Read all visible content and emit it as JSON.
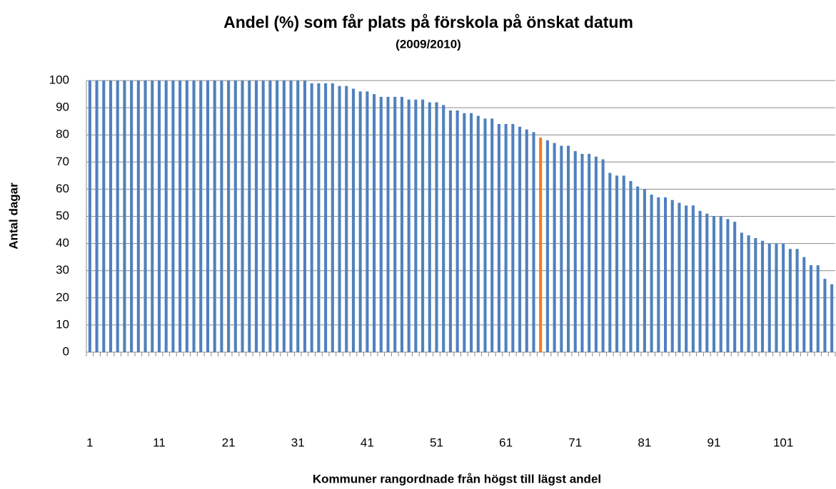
{
  "chart_data": {
    "type": "bar",
    "title": "Andel (%) som får plats på förskola på önskat datum",
    "subtitle": "(2009/2010)",
    "x_label": "Kommuner rangordnade från högst till lägst andel",
    "y_label": "Antal dagar",
    "categories": [
      1,
      null,
      null,
      null,
      null,
      null,
      null,
      null,
      null,
      null,
      11,
      null,
      null,
      null,
      null,
      null,
      null,
      null,
      null,
      null,
      21,
      null,
      null,
      null,
      null,
      null,
      null,
      null,
      null,
      null,
      31,
      null,
      null,
      null,
      null,
      null,
      null,
      null,
      null,
      null,
      41,
      null,
      null,
      null,
      null,
      null,
      null,
      null,
      null,
      null,
      51,
      null,
      null,
      null,
      null,
      null,
      null,
      null,
      null,
      null,
      61,
      null,
      null,
      null,
      null,
      null,
      null,
      null,
      null,
      null,
      71,
      null,
      null,
      null,
      null,
      null,
      null,
      null,
      null,
      null,
      81,
      null,
      null,
      null,
      null,
      null,
      null,
      null,
      null,
      null,
      91,
      null,
      null,
      null,
      null,
      null,
      null,
      null,
      null,
      null,
      101,
      null,
      null,
      null,
      null,
      null,
      null,
      null
    ],
    "values": [
      100,
      100,
      100,
      100,
      100,
      100,
      100,
      100,
      100,
      100,
      100,
      100,
      100,
      100,
      100,
      100,
      100,
      100,
      100,
      100,
      100,
      100,
      100,
      100,
      100,
      100,
      100,
      100,
      100,
      100,
      100,
      100,
      99,
      99,
      99,
      99,
      98,
      98,
      97,
      96,
      96,
      95,
      94,
      94,
      94,
      94,
      93,
      93,
      93,
      92,
      92,
      91,
      89,
      89,
      88,
      88,
      87,
      86,
      86,
      84,
      84,
      84,
      83,
      82,
      81,
      79,
      78,
      77,
      76,
      76,
      74,
      73,
      73,
      72,
      71,
      66,
      65,
      65,
      63,
      61,
      60,
      58,
      57,
      57,
      56,
      55,
      54,
      54,
      52,
      51,
      50,
      50,
      49,
      48,
      44,
      43,
      42,
      41,
      40,
      40,
      40,
      38,
      38,
      35,
      32,
      32,
      27,
      25
    ],
    "color": "#4f81bd",
    "highlight_color": "#f07c1e",
    "highlight": [
      66
    ],
    "ylim": [
      0,
      100
    ],
    "yticks": [
      0,
      10,
      20,
      30,
      40,
      50,
      60,
      70,
      80,
      90,
      100
    ],
    "grid": true
  }
}
